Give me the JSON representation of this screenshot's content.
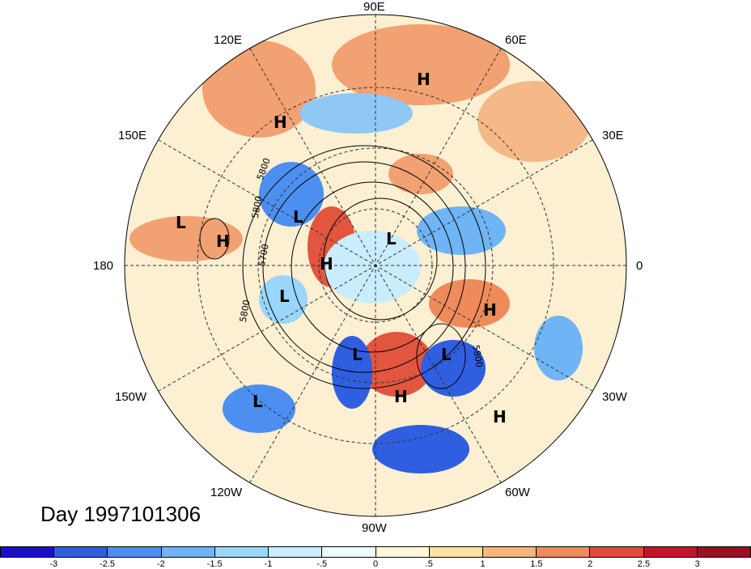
{
  "title": "Day 1997101306",
  "lon_labels": [
    "90E",
    "60E",
    "30E",
    "0",
    "30W",
    "60W",
    "90W",
    "120W",
    "150W",
    "180",
    "150E",
    "120E"
  ],
  "pressure_centers": [
    {
      "label": "H"
    },
    {
      "label": "H"
    },
    {
      "label": "L"
    },
    {
      "label": "H"
    },
    {
      "label": "L"
    },
    {
      "label": "H"
    },
    {
      "label": "L"
    },
    {
      "label": "L"
    },
    {
      "label": "H"
    },
    {
      "label": "L"
    },
    {
      "label": "L"
    },
    {
      "label": "H"
    },
    {
      "label": "L"
    },
    {
      "label": "H"
    }
  ],
  "contour_labels": [
    "5800",
    "5800",
    "5700",
    "5800",
    "5800"
  ],
  "colorbar": {
    "ticks": [
      "-3",
      "-2.5",
      "-2",
      "-1.5",
      "-1",
      "-.5",
      "0",
      ".5",
      "1",
      "1.5",
      "2",
      "2.5",
      "3"
    ],
    "colors": [
      "#1a0fc7",
      "#2f5fe0",
      "#4d8ff0",
      "#6fb4f5",
      "#99d6fa",
      "#c9edfc",
      "#eefbfd",
      "#fdf8dc",
      "#fbe2a2",
      "#f8b77a",
      "#f08a5b",
      "#e24a3b",
      "#c4162a",
      "#991020"
    ]
  }
}
